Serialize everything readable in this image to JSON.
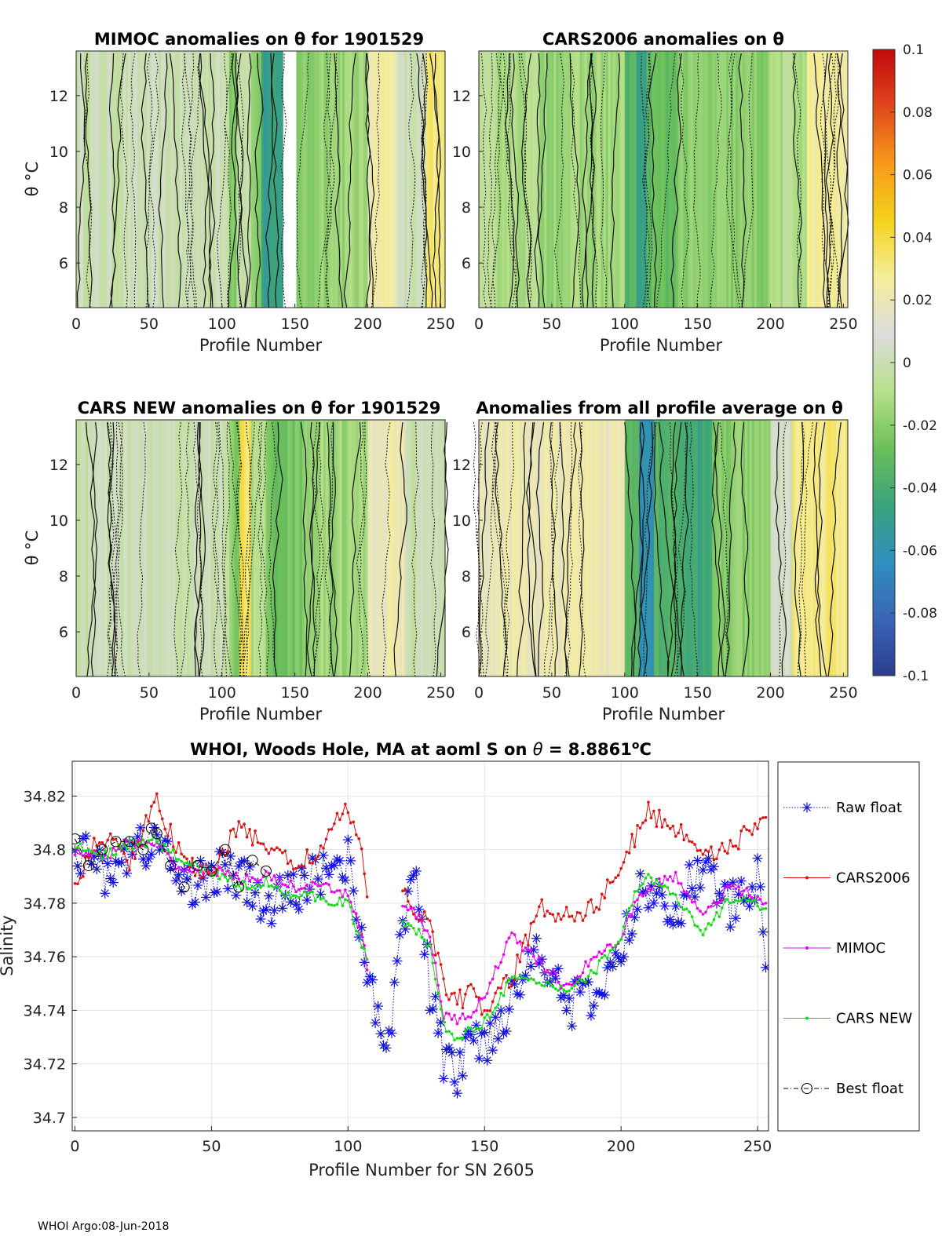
{
  "footer": "WHOI Argo:08-Jun-2018",
  "colorbar": {
    "ticks": [
      "0.1",
      "0.08",
      "0.06",
      "0.04",
      "0.02",
      "0",
      "-0.02",
      "-0.04",
      "-0.06",
      "-0.08",
      "-0.1"
    ],
    "range": [
      -0.1,
      0.1
    ],
    "colors": [
      "#2b3d8f",
      "#3a66b5",
      "#2f8fbf",
      "#3aa37a",
      "#6cc05a",
      "#b8e08a",
      "#dcdcdc",
      "#f5ee9a",
      "#f3d21c",
      "#f79a1a",
      "#e0471c",
      "#c00a0a"
    ]
  },
  "panels": [
    {
      "title": "MIMOC anomalies on θ  for 1901529",
      "xlabel": "Profile Number",
      "ylabel": "θ °C",
      "xticks": [
        "0",
        "50",
        "100",
        "150",
        "200",
        "250"
      ],
      "yticks": [
        "6",
        "8",
        "10",
        "12"
      ],
      "xlim": [
        0,
        253
      ],
      "ylim": [
        4.4,
        13.6
      ],
      "base": "#d6d6d6"
    },
    {
      "title": "CARS2006 anomalies on θ",
      "xlabel": "Profile Number",
      "ylabel": "θ °C",
      "xticks": [
        "0",
        "50",
        "100",
        "150",
        "200",
        "250"
      ],
      "yticks": [
        "6",
        "8",
        "10",
        "12"
      ],
      "xlim": [
        0,
        253
      ],
      "ylim": [
        4.4,
        13.6
      ],
      "base": "#c6e6a8"
    },
    {
      "title": "CARS NEW anomalies on θ for 1901529",
      "xlabel": "Profile Number",
      "ylabel": "θ °C",
      "xticks": [
        "0",
        "50",
        "100",
        "150",
        "200",
        "250"
      ],
      "yticks": [
        "6",
        "8",
        "10",
        "12"
      ],
      "xlim": [
        0,
        253
      ],
      "ylim": [
        4.4,
        13.6
      ],
      "base": "#d6d6d6"
    },
    {
      "title": "Anomalies from all profile average on θ",
      "xlabel": "Profile Number",
      "ylabel": "θ °C",
      "xticks": [
        "0",
        "50",
        "100",
        "150",
        "200",
        "250"
      ],
      "yticks": [
        "6",
        "8",
        "10",
        "12"
      ],
      "xlim": [
        0,
        253
      ],
      "ylim": [
        4.4,
        13.6
      ],
      "base": "#f3ec9e"
    }
  ],
  "chart_data": [
    {
      "type": "heatmap",
      "title": "MIMOC anomalies on θ  for 1901529",
      "xlabel": "Profile Number",
      "ylabel": "θ °C",
      "xlim": [
        0,
        253
      ],
      "ylim": [
        4.4,
        13.6
      ],
      "bands": [
        {
          "x0": 0,
          "x1": 105,
          "value": 0.0
        },
        {
          "x0": 105,
          "x1": 110,
          "value": -0.02
        },
        {
          "x0": 110,
          "x1": 120,
          "value": 0.0
        },
        {
          "x0": 120,
          "x1": 127,
          "value": -0.02
        },
        {
          "x0": 127,
          "x1": 142,
          "value": -0.05
        },
        {
          "x0": 142,
          "x1": 151,
          "value": null
        },
        {
          "x0": 151,
          "x1": 165,
          "value": -0.02
        },
        {
          "x0": 165,
          "x1": 200,
          "value": -0.015
        },
        {
          "x0": 200,
          "x1": 220,
          "value": 0.025
        },
        {
          "x0": 220,
          "x1": 240,
          "value": 0.0
        },
        {
          "x0": 240,
          "x1": 253,
          "value": 0.03
        }
      ]
    },
    {
      "type": "heatmap",
      "title": "CARS2006 anomalies on θ",
      "xlabel": "Profile Number",
      "ylabel": "θ °C",
      "xlim": [
        0,
        253
      ],
      "ylim": [
        4.4,
        13.6
      ],
      "bands": [
        {
          "x0": 0,
          "x1": 40,
          "value": -0.01
        },
        {
          "x0": 40,
          "x1": 100,
          "value": -0.015
        },
        {
          "x0": 100,
          "x1": 108,
          "value": -0.035
        },
        {
          "x0": 108,
          "x1": 115,
          "value": -0.05
        },
        {
          "x0": 115,
          "x1": 135,
          "value": -0.03
        },
        {
          "x0": 135,
          "x1": 160,
          "value": -0.02
        },
        {
          "x0": 160,
          "x1": 200,
          "value": -0.02
        },
        {
          "x0": 200,
          "x1": 225,
          "value": -0.01
        },
        {
          "x0": 225,
          "x1": 253,
          "value": 0.025
        }
      ]
    },
    {
      "type": "heatmap",
      "title": "CARS NEW anomalies on θ for 1901529",
      "xlabel": "Profile Number",
      "ylabel": "θ °C",
      "xlim": [
        0,
        253
      ],
      "ylim": [
        4.4,
        13.6
      ],
      "bands": [
        {
          "x0": 0,
          "x1": 105,
          "value": 0.0
        },
        {
          "x0": 105,
          "x1": 112,
          "value": -0.02
        },
        {
          "x0": 112,
          "x1": 120,
          "value": 0.035
        },
        {
          "x0": 120,
          "x1": 130,
          "value": -0.01
        },
        {
          "x0": 130,
          "x1": 155,
          "value": -0.025
        },
        {
          "x0": 155,
          "x1": 200,
          "value": -0.015
        },
        {
          "x0": 200,
          "x1": 225,
          "value": 0.02
        },
        {
          "x0": 225,
          "x1": 253,
          "value": 0.0
        }
      ]
    },
    {
      "type": "heatmap",
      "title": "Anomalies from all profile average on θ",
      "xlabel": "Profile Number",
      "ylabel": "θ °C",
      "xlim": [
        0,
        253
      ],
      "ylim": [
        4.4,
        13.6
      ],
      "bands": [
        {
          "x0": 0,
          "x1": 100,
          "value": 0.02
        },
        {
          "x0": 100,
          "x1": 110,
          "value": -0.03
        },
        {
          "x0": 110,
          "x1": 120,
          "value": -0.06
        },
        {
          "x0": 120,
          "x1": 140,
          "value": -0.035
        },
        {
          "x0": 140,
          "x1": 160,
          "value": -0.045
        },
        {
          "x0": 160,
          "x1": 200,
          "value": -0.02
        },
        {
          "x0": 200,
          "x1": 215,
          "value": 0.005
        },
        {
          "x0": 215,
          "x1": 253,
          "value": 0.03
        }
      ]
    },
    {
      "type": "line",
      "title": "WHOI, Woods Hole, MA at aoml S on θ = 8.8861°C",
      "title_parts": [
        "WHOI, Woods Hole, MA at aoml S on ",
        "θ",
        " = 8.8861",
        "o",
        "C"
      ],
      "xlabel": "Profile Number for SN 2605",
      "ylabel": "Salinity",
      "xlim": [
        -1,
        254
      ],
      "ylim": [
        34.695,
        34.833
      ],
      "xticks": [
        "0",
        "50",
        "100",
        "150",
        "200",
        "250"
      ],
      "yticks": [
        "34.7",
        "34.72",
        "34.74",
        "34.76",
        "34.78",
        "34.8",
        "34.82"
      ],
      "grid": true,
      "legend_position": "right",
      "legend": [
        "Raw float",
        "CARS2006",
        "MIMOC",
        "CARS NEW",
        "Best float"
      ],
      "x_anchors": [
        0,
        10,
        20,
        30,
        40,
        50,
        60,
        70,
        80,
        90,
        100,
        105,
        108,
        112,
        115,
        120,
        125,
        130,
        135,
        140,
        145,
        150,
        160,
        170,
        180,
        190,
        200,
        205,
        210,
        220,
        230,
        240,
        250,
        253
      ],
      "series": [
        {
          "name": "Raw float",
          "color": "#1010e0",
          "values": [
            34.8,
            34.792,
            34.798,
            34.804,
            34.786,
            34.792,
            34.79,
            34.778,
            34.784,
            34.792,
            34.796,
            34.77,
            34.748,
            34.728,
            34.73,
            34.776,
            34.788,
            34.748,
            34.722,
            34.716,
            34.73,
            34.728,
            34.744,
            34.766,
            34.742,
            34.744,
            34.76,
            34.78,
            34.786,
            34.778,
            34.794,
            34.778,
            34.788,
            34.756
          ]
        },
        {
          "name": "CARS2006",
          "color": "#dd1111",
          "values": [
            34.788,
            34.806,
            34.796,
            34.818,
            34.794,
            34.792,
            34.808,
            34.802,
            34.794,
            34.8,
            34.816,
            34.8,
            34.768,
            null,
            null,
            34.782,
            34.778,
            34.772,
            34.75,
            34.744,
            34.746,
            34.74,
            34.752,
            34.778,
            34.776,
            34.778,
            34.794,
            34.804,
            34.814,
            34.808,
            34.8,
            34.8,
            34.81,
            34.812
          ]
        },
        {
          "name": "MIMOC",
          "color": "#ee00ee",
          "values": [
            34.8,
            34.797,
            34.803,
            34.801,
            34.792,
            34.793,
            34.789,
            34.79,
            34.786,
            34.786,
            34.783,
            34.77,
            34.75,
            null,
            null,
            34.778,
            34.776,
            34.768,
            34.738,
            34.736,
            34.738,
            34.746,
            34.768,
            34.758,
            34.748,
            34.76,
            34.766,
            34.78,
            34.786,
            34.79,
            34.776,
            34.786,
            34.782,
            34.78
          ]
        },
        {
          "name": "CARS NEW",
          "color": "#11dd11",
          "values": [
            34.801,
            34.798,
            34.802,
            34.803,
            34.795,
            34.792,
            34.786,
            34.788,
            34.783,
            34.782,
            34.78,
            34.764,
            34.756,
            null,
            null,
            34.772,
            34.77,
            34.764,
            34.734,
            34.73,
            34.732,
            34.736,
            34.752,
            34.75,
            34.748,
            34.754,
            34.768,
            34.784,
            34.79,
            34.782,
            34.768,
            34.782,
            34.78,
            34.778
          ]
        },
        {
          "name": "Best float",
          "color": "#000000",
          "x": [
            0,
            5,
            10,
            15,
            20,
            25,
            28,
            30,
            35,
            40,
            45,
            50,
            55,
            60,
            65,
            70
          ],
          "values": [
            34.804,
            34.794,
            34.8,
            34.803,
            34.803,
            34.8,
            34.808,
            34.806,
            34.794,
            34.786,
            34.794,
            34.792,
            34.8,
            34.786,
            34.796,
            34.792
          ]
        }
      ]
    }
  ]
}
